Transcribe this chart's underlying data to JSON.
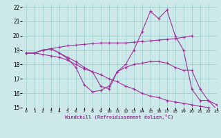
{
  "bg_color": "#cce8e8",
  "line_color": "#993399",
  "grid_color": "#99cccc",
  "xlabel": "Windchill (Refroidissement éolien,°C)",
  "xlim": [
    -0.5,
    23
  ],
  "ylim": [
    15,
    22.2
  ],
  "yticks": [
    15,
    16,
    17,
    18,
    19,
    20,
    21,
    22
  ],
  "xticks": [
    0,
    1,
    2,
    3,
    4,
    5,
    6,
    7,
    8,
    9,
    10,
    11,
    12,
    13,
    14,
    15,
    16,
    17,
    18,
    19,
    20,
    21,
    22,
    23
  ],
  "series": [
    {
      "x": [
        0,
        1,
        2,
        3,
        4,
        5,
        6,
        7,
        8,
        9,
        10,
        11,
        12,
        13,
        14,
        15,
        16,
        17,
        18,
        19,
        20
      ],
      "y": [
        18.8,
        18.8,
        19.0,
        19.1,
        19.2,
        19.3,
        19.35,
        19.4,
        19.45,
        19.5,
        19.5,
        19.5,
        19.5,
        19.55,
        19.6,
        19.65,
        19.7,
        19.75,
        19.8,
        19.9,
        20.0
      ]
    },
    {
      "x": [
        0,
        1,
        2,
        3,
        4,
        5,
        6,
        7,
        8,
        9,
        10,
        11,
        12,
        13,
        14,
        15,
        16,
        17,
        18,
        19,
        20,
        21,
        22,
        23
      ],
      "y": [
        18.8,
        18.8,
        19.0,
        19.1,
        18.8,
        18.5,
        18.2,
        17.8,
        17.5,
        16.5,
        16.3,
        17.5,
        18.0,
        19.0,
        20.3,
        21.7,
        21.2,
        21.8,
        20.0,
        19.0,
        16.3,
        15.5,
        15.5,
        14.9
      ]
    },
    {
      "x": [
        0,
        1,
        2,
        3,
        4,
        5,
        6,
        7,
        8,
        9,
        10,
        11,
        12,
        13,
        14,
        15,
        16,
        17,
        18,
        19,
        20,
        21,
        22,
        23
      ],
      "y": [
        18.8,
        18.8,
        18.7,
        18.6,
        18.5,
        18.3,
        18.0,
        17.7,
        17.5,
        17.3,
        17.0,
        16.8,
        16.5,
        16.3,
        16.0,
        15.8,
        15.7,
        15.5,
        15.4,
        15.3,
        15.2,
        15.1,
        15.0,
        14.9
      ]
    },
    {
      "x": [
        0,
        1,
        2,
        3,
        4,
        5,
        6,
        7,
        8,
        9,
        10,
        11,
        12,
        13,
        14,
        15,
        16,
        17,
        18,
        19,
        20,
        21,
        22,
        23
      ],
      "y": [
        18.8,
        18.8,
        19.0,
        19.1,
        18.8,
        18.4,
        17.8,
        16.6,
        16.1,
        16.2,
        16.5,
        17.5,
        17.8,
        18.0,
        18.1,
        18.2,
        18.2,
        18.1,
        17.8,
        17.6,
        17.6,
        16.3,
        15.5,
        15.2
      ]
    }
  ]
}
